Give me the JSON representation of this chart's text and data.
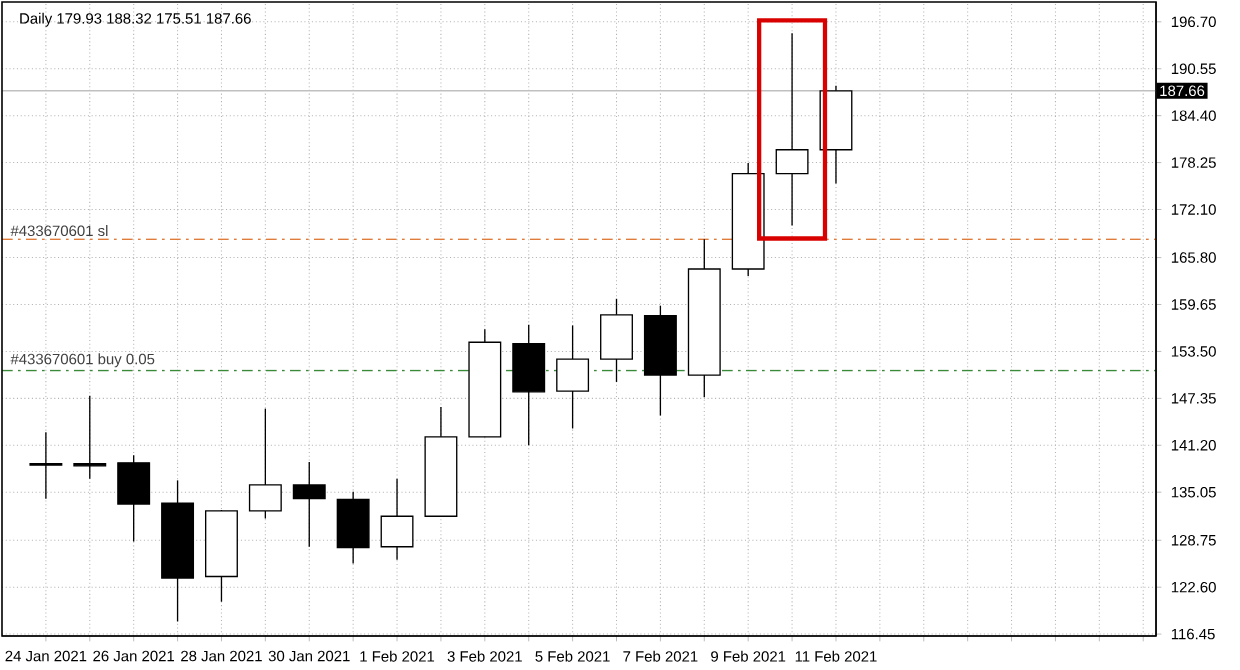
{
  "chart_data": {
    "type": "candlestick",
    "title": "Daily  179.93 188.32 175.51 187.66",
    "x": [
      "2021-01-24",
      "2021-01-25",
      "2021-01-26",
      "2021-01-27",
      "2021-01-28",
      "2021-01-29",
      "2021-01-30",
      "2021-01-31",
      "2021-02-01",
      "2021-02-02",
      "2021-02-03",
      "2021-02-04",
      "2021-02-05",
      "2021-02-06",
      "2021-02-07",
      "2021-02-08",
      "2021-02-09",
      "2021-02-10",
      "2021-02-11"
    ],
    "ohlc": [
      [
        138.8,
        142.9,
        134.2,
        138.6
      ],
      [
        138.8,
        147.7,
        136.8,
        138.5
      ],
      [
        138.9,
        139.9,
        128.6,
        133.5
      ],
      [
        133.6,
        136.6,
        118.1,
        123.8
      ],
      [
        124.0,
        132.7,
        120.7,
        132.6
      ],
      [
        132.6,
        146.0,
        131.6,
        136.0
      ],
      [
        136.0,
        139.0,
        127.9,
        134.2
      ],
      [
        134.1,
        135.1,
        125.7,
        127.8
      ],
      [
        127.9,
        136.8,
        126.2,
        131.9
      ],
      [
        131.9,
        146.2,
        131.9,
        142.3
      ],
      [
        142.3,
        156.4,
        142.3,
        154.7
      ],
      [
        154.5,
        157.0,
        141.2,
        148.2
      ],
      [
        148.3,
        156.9,
        143.4,
        152.5
      ],
      [
        152.5,
        160.4,
        149.5,
        158.3
      ],
      [
        158.2,
        159.5,
        145.1,
        150.4
      ],
      [
        150.4,
        168.2,
        147.5,
        164.3
      ],
      [
        164.3,
        178.2,
        163.4,
        176.8
      ],
      [
        176.8,
        195.2,
        170.0,
        179.93
      ],
      [
        179.93,
        188.32,
        175.51,
        187.66
      ]
    ],
    "xlim": [
      "2021-01-23",
      "2021-02-18T07:00"
    ],
    "xticks": [
      {
        "value": "2021-01-24",
        "label": "24 Jan 2021"
      },
      {
        "value": "2021-01-25",
        "label": null
      },
      {
        "value": "2021-01-26",
        "label": "26 Jan 2021"
      },
      {
        "value": "2021-01-27",
        "label": null
      },
      {
        "value": "2021-01-28",
        "label": "28 Jan 2021"
      },
      {
        "value": "2021-01-29",
        "label": null
      },
      {
        "value": "2021-01-30",
        "label": "30 Jan 2021"
      },
      {
        "value": "2021-01-31",
        "label": null
      },
      {
        "value": "2021-02-01",
        "label": "1 Feb 2021"
      },
      {
        "value": "2021-02-02",
        "label": null
      },
      {
        "value": "2021-02-03",
        "label": "3 Feb 2021"
      },
      {
        "value": "2021-02-04",
        "label": null
      },
      {
        "value": "2021-02-05",
        "label": "5 Feb 2021"
      },
      {
        "value": "2021-02-06",
        "label": null
      },
      {
        "value": "2021-02-07",
        "label": "7 Feb 2021"
      },
      {
        "value": "2021-02-08",
        "label": null
      },
      {
        "value": "2021-02-09",
        "label": "9 Feb 2021"
      },
      {
        "value": "2021-02-10",
        "label": null
      },
      {
        "value": "2021-02-11",
        "label": "11 Feb 2021"
      },
      {
        "value": "2021-02-12",
        "label": null
      },
      {
        "value": "2021-02-13",
        "label": null
      },
      {
        "value": "2021-02-14",
        "label": null
      },
      {
        "value": "2021-02-15",
        "label": null
      },
      {
        "value": "2021-02-16",
        "label": null
      },
      {
        "value": "2021-02-17",
        "label": null
      },
      {
        "value": "2021-02-18",
        "label": null
      }
    ],
    "ylim": [
      116.2,
      199.3
    ],
    "yticks": [
      {
        "value": 116.45,
        "label": "116.45"
      },
      {
        "value": 122.6,
        "label": "122.60"
      },
      {
        "value": 128.75,
        "label": "128.75"
      },
      {
        "value": 135.05,
        "label": "135.05"
      },
      {
        "value": 141.2,
        "label": "141.20"
      },
      {
        "value": 147.35,
        "label": "147.35"
      },
      {
        "value": 153.5,
        "label": "153.50"
      },
      {
        "value": 159.65,
        "label": "159.65"
      },
      {
        "value": 165.8,
        "label": "165.80"
      },
      {
        "value": 172.1,
        "label": "172.10"
      },
      {
        "value": 178.25,
        "label": "178.25"
      },
      {
        "value": 184.4,
        "label": "184.40"
      },
      {
        "value": 190.55,
        "label": "190.55"
      },
      {
        "value": 196.7,
        "label": "196.70"
      }
    ],
    "grid": true,
    "ref_lines": [
      {
        "axis": "y",
        "value": 168.2,
        "label": "#433670601 sl",
        "color": "#e07b39",
        "line_style": "dashed"
      },
      {
        "axis": "y",
        "value": 151.0,
        "label": "#433670601 buy 0.05",
        "color": "#3a8a3a",
        "line_style": "dashed"
      },
      {
        "axis": "y",
        "value": 187.66,
        "label": "187.66",
        "color": "#c0c0c0",
        "line_style": "solid"
      }
    ]
  }
}
